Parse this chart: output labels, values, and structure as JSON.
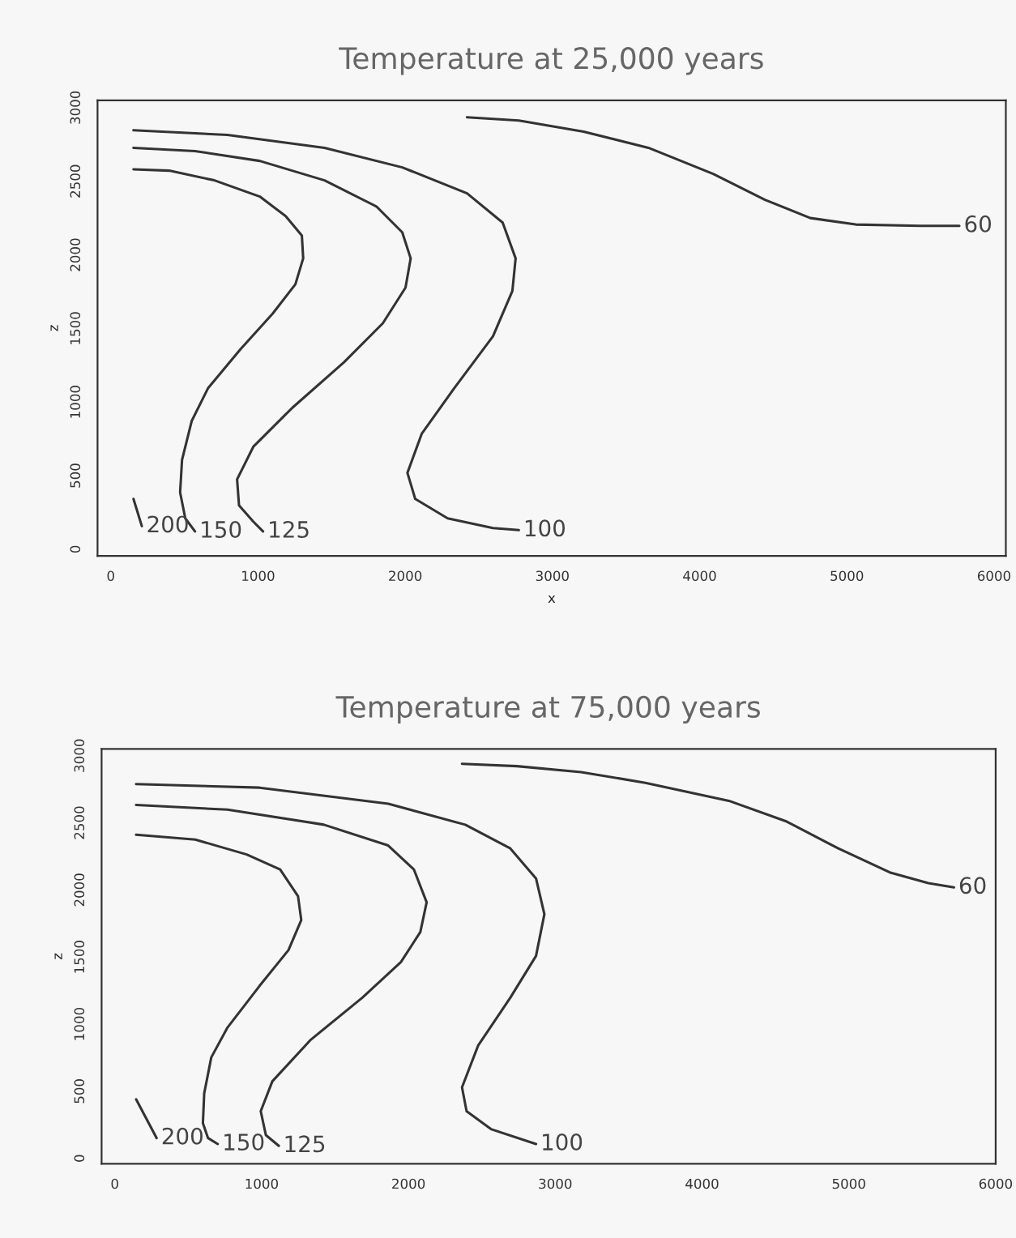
{
  "chart_data": [
    {
      "type": "line",
      "title": "Temperature at 25,000 years",
      "xlabel": "x",
      "ylabel": "z",
      "xlim": [
        -90,
        6080
      ],
      "ylim": [
        -45,
        3050
      ],
      "xticks": [
        0,
        1000,
        2000,
        3000,
        4000,
        5000,
        6000
      ],
      "yticks": [
        0,
        500,
        1000,
        1500,
        2000,
        2500,
        3000
      ],
      "grid": false,
      "legend": false,
      "marker": "none",
      "series": [
        {
          "name": "200",
          "color": "#333333",
          "x": [
            154,
            211
          ],
          "values": [
            342,
            157
          ]
        },
        {
          "name": "150",
          "color": "#333333",
          "x": [
            154,
            396,
            704,
            1012,
            1188,
            1298,
            1307,
            1254,
            1100,
            880,
            660,
            550,
            484,
            471,
            506,
            572
          ],
          "values": [
            2581,
            2572,
            2506,
            2396,
            2263,
            2131,
            1976,
            1800,
            1601,
            1358,
            1093,
            872,
            607,
            386,
            210,
            121
          ]
        },
        {
          "name": "125",
          "color": "#333333",
          "x": [
            154,
            572,
            1012,
            1452,
            1804,
            1980,
            2037,
            2002,
            1848,
            1584,
            1232,
            968,
            858,
            871,
            968,
            1034
          ],
          "values": [
            2727,
            2705,
            2638,
            2506,
            2329,
            2153,
            1976,
            1777,
            1535,
            1270,
            960,
            696,
            475,
            298,
            188,
            121
          ]
        },
        {
          "name": "100",
          "color": "#333333",
          "x": [
            154,
            792,
            1452,
            1980,
            2420,
            2662,
            2750,
            2728,
            2596,
            2332,
            2112,
            2015,
            2068,
            2288,
            2596,
            2772
          ],
          "values": [
            2846,
            2815,
            2727,
            2594,
            2418,
            2219,
            1976,
            1755,
            1446,
            1093,
            784,
            519,
            342,
            210,
            144,
            130
          ]
        },
        {
          "name": "60",
          "color": "#333333",
          "x": [
            2420,
            2772,
            3212,
            3652,
            4092,
            4444,
            4752,
            5060,
            5500,
            5764
          ],
          "values": [
            2934,
            2912,
            2837,
            2727,
            2550,
            2374,
            2250,
            2206,
            2197,
            2197
          ]
        }
      ]
    },
    {
      "type": "line",
      "title": "Temperature at 75,000 years",
      "ylabel": "z",
      "xlim": [
        -90,
        6000
      ],
      "ylim": [
        -40,
        3050
      ],
      "xticks": [
        0,
        1000,
        2000,
        3000,
        4000,
        5000,
        6000
      ],
      "yticks": [
        0,
        500,
        1000,
        1500,
        2000,
        2500,
        3000
      ],
      "grid": false,
      "legend": false,
      "marker": "none",
      "series": [
        {
          "name": "200",
          "color": "#333333",
          "x": [
            145,
            285
          ],
          "values": [
            440,
            151
          ]
        },
        {
          "name": "150",
          "color": "#333333",
          "x": [
            145,
            548,
            898,
            1126,
            1248,
            1270,
            1183,
            986,
            767,
            657,
            609,
            600,
            635,
            701
          ],
          "values": [
            2411,
            2375,
            2264,
            2153,
            1953,
            1775,
            1552,
            1285,
            974,
            752,
            485,
            262,
            151,
            107
          ]
        },
        {
          "name": "125",
          "color": "#333333",
          "x": [
            145,
            767,
            1424,
            1862,
            2037,
            2124,
            2081,
            1949,
            1686,
            1336,
            1073,
            994,
            1029,
            1117
          ],
          "values": [
            2633,
            2598,
            2486,
            2331,
            2153,
            1908,
            1686,
            1463,
            1197,
            885,
            574,
            351,
            173,
            93
          ]
        },
        {
          "name": "100",
          "color": "#333333",
          "x": [
            145,
            986,
            1862,
            2387,
            2694,
            2869,
            2926,
            2869,
            2694,
            2475,
            2365,
            2396,
            2562,
            2869
          ],
          "values": [
            2789,
            2762,
            2642,
            2486,
            2309,
            2086,
            1819,
            1508,
            1197,
            841,
            529,
            351,
            218,
            107
          ]
        },
        {
          "name": "60",
          "color": "#333333",
          "x": [
            2365,
            2738,
            3176,
            3614,
            4183,
            4577,
            4928,
            5278,
            5541,
            5716
          ],
          "values": [
            2940,
            2922,
            2878,
            2798,
            2664,
            2509,
            2309,
            2131,
            2051,
            2019
          ]
        }
      ]
    }
  ]
}
